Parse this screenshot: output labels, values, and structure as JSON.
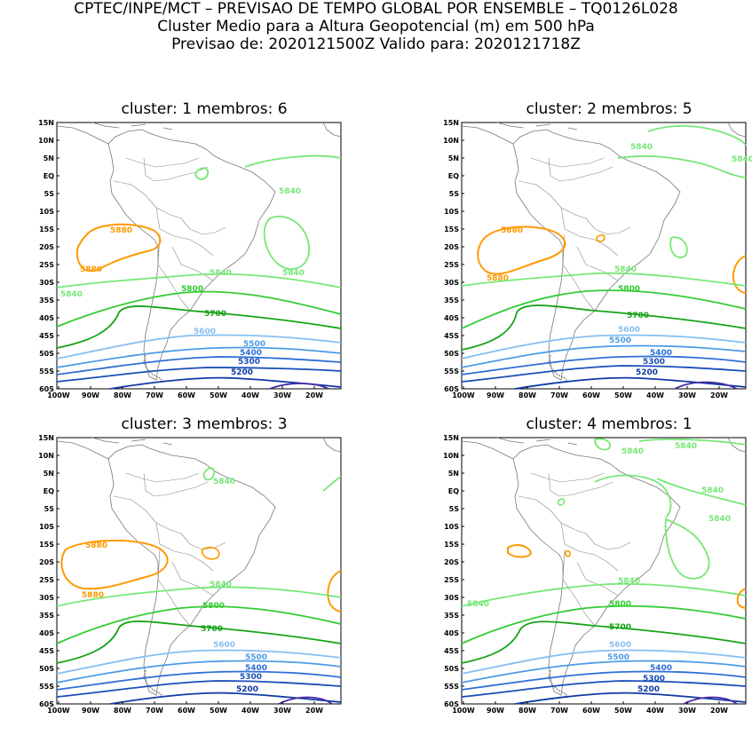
{
  "header": {
    "line1": "CPTEC/INPE/MCT – PREVISAO DE TEMPO GLOBAL POR ENSEMBLE – TQ0126L028",
    "line2": "Cluster Medio para a Altura Geopotencial (m) em 500 hPa",
    "line3": "Previsao de: 2020121500Z    Valido para: 2020121718Z"
  },
  "axes": {
    "lat_labels": [
      "15N",
      "10N",
      "5N",
      "EQ",
      "5S",
      "10S",
      "15S",
      "20S",
      "25S",
      "30S",
      "35S",
      "40S",
      "45S",
      "50S",
      "55S",
      "60S"
    ],
    "lon_labels": [
      "100W",
      "90W",
      "80W",
      "70W",
      "60W",
      "50W",
      "40W",
      "30W",
      "20W"
    ]
  },
  "contour_colors": {
    "5880": "#ff9900",
    "5840": "#77e777",
    "5800": "#33cc33",
    "5700": "#17a317",
    "5600": "#87bff0",
    "5500": "#4d9be6",
    "5400": "#2e6fd6",
    "5300": "#1a4fb8",
    "5200": "#0e3aa3",
    "5100": "#4a2ba6"
  },
  "panels": [
    {
      "title": "cluster: 1   membros: 6",
      "labels": {
        "5880a": "5880",
        "5880b": "5880",
        "5840a": "5840",
        "5840b": "5840",
        "5840c": "5840",
        "5840d": "5840",
        "5800": "5800",
        "5700": "5700",
        "5600": "5600",
        "5500": "5500",
        "5400": "5400",
        "5300": "5300",
        "5200": "5200"
      }
    },
    {
      "title": "cluster: 2   membros: 5",
      "labels": {
        "5880a": "5880",
        "5880b": "5880",
        "5840a": "5840",
        "5840b": "5840",
        "5840c": "5840",
        "5800": "5800",
        "5700": "5700",
        "5600": "5600",
        "5500": "5500",
        "5400": "5400",
        "5300": "5300",
        "5200": "5200"
      }
    },
    {
      "title": "cluster: 3   membros: 3",
      "labels": {
        "5880a": "5880",
        "5880b": "5880",
        "5840a": "5840",
        "5840b": "5840",
        "5800": "5800",
        "5700": "5700",
        "5600": "5600",
        "5500": "5500",
        "5400": "5400",
        "5300": "5300",
        "5200": "5200"
      }
    },
    {
      "title": "cluster: 4   membros: 1",
      "labels": {
        "5840a": "5840",
        "5840b": "5840",
        "5840c": "5840",
        "5840d": "5840",
        "5840e": "5840",
        "5840f": "5840",
        "5800": "5800",
        "5700": "5700",
        "5600": "5600",
        "5500": "5500",
        "5400": "5400",
        "5300": "5300",
        "5200": "5200"
      }
    }
  ]
}
